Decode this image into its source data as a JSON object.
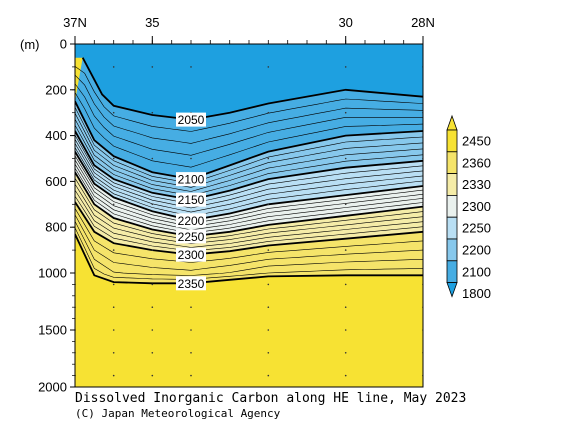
{
  "chart_data": {
    "type": "contour section",
    "title": "Dissolved Inorganic Carbon along HE line, May 2023",
    "credit": "(C) Japan Meteorological Agency",
    "y_unit_label": "(m)",
    "x_ticks": [
      {
        "lat": 37,
        "label": "37N"
      },
      {
        "lat": 35,
        "label": "35"
      },
      {
        "lat": 30,
        "label": "30"
      },
      {
        "lat": 28,
        "label": "28N"
      }
    ],
    "x_range": [
      37,
      28
    ],
    "y_ticks": [
      {
        "depth": 0,
        "label": "0"
      },
      {
        "depth": 200,
        "label": "200"
      },
      {
        "depth": 400,
        "label": "400"
      },
      {
        "depth": 600,
        "label": "600"
      },
      {
        "depth": 800,
        "label": "800"
      },
      {
        "depth": 1000,
        "label": "1000"
      },
      {
        "depth": 1500,
        "label": "1500"
      },
      {
        "depth": 2000,
        "label": "2000"
      }
    ],
    "y_range": [
      0,
      2000
    ],
    "y_scale": "piecewise linear: 0-1000 m upper half, 1000-2000 m lower half",
    "stations_lat": [
      37,
      36,
      35,
      34,
      32,
      30,
      28
    ],
    "contour_levels": [
      {
        "value": 2050,
        "label": "2050",
        "bold": true,
        "points": [
          [
            36.8,
            60
          ],
          [
            36.3,
            220
          ],
          [
            36.0,
            270
          ],
          [
            35.0,
            310
          ],
          [
            34.0,
            330
          ],
          [
            33.0,
            300
          ],
          [
            32.0,
            260
          ],
          [
            30.0,
            200
          ],
          [
            28.0,
            230
          ]
        ]
      },
      {
        "value": 2100,
        "label": "2100",
        "bold": true,
        "points": [
          [
            37.0,
            250
          ],
          [
            36.5,
            420
          ],
          [
            36.0,
            490
          ],
          [
            35.0,
            560
          ],
          [
            34.0,
            590
          ],
          [
            33.0,
            530
          ],
          [
            32.0,
            470
          ],
          [
            30.0,
            400
          ],
          [
            28.0,
            380
          ]
        ]
      },
      {
        "value": 2150,
        "label": "2150",
        "bold": true,
        "points": [
          [
            37.0,
            380
          ],
          [
            36.5,
            530
          ],
          [
            36.0,
            590
          ],
          [
            35.0,
            650
          ],
          [
            34.0,
            680
          ],
          [
            33.0,
            640
          ],
          [
            32.0,
            590
          ],
          [
            30.0,
            540
          ],
          [
            28.0,
            510
          ]
        ]
      },
      {
        "value": 2200,
        "label": "2200",
        "bold": true,
        "points": [
          [
            37.0,
            470
          ],
          [
            36.5,
            610
          ],
          [
            36.0,
            670
          ],
          [
            35.0,
            730
          ],
          [
            34.0,
            770
          ],
          [
            33.0,
            740
          ],
          [
            32.0,
            700
          ],
          [
            30.0,
            660
          ],
          [
            28.0,
            620
          ]
        ]
      },
      {
        "value": 2250,
        "label": "2250",
        "bold": true,
        "points": [
          [
            37.0,
            560
          ],
          [
            36.5,
            700
          ],
          [
            36.0,
            760
          ],
          [
            35.0,
            810
          ],
          [
            34.0,
            840
          ],
          [
            33.0,
            820
          ],
          [
            32.0,
            790
          ],
          [
            30.0,
            750
          ],
          [
            28.0,
            710
          ]
        ]
      },
      {
        "value": 2300,
        "label": "2300",
        "bold": true,
        "points": [
          [
            37.0,
            690
          ],
          [
            36.5,
            820
          ],
          [
            36.0,
            870
          ],
          [
            35.0,
            900
          ],
          [
            34.0,
            920
          ],
          [
            33.0,
            905
          ],
          [
            32.0,
            880
          ],
          [
            30.0,
            850
          ],
          [
            28.0,
            820
          ]
        ]
      },
      {
        "value": 2350,
        "label": "2350",
        "bold": true,
        "points": [
          [
            37.0,
            830
          ],
          [
            36.5,
            1020
          ],
          [
            36.0,
            1080
          ],
          [
            35.0,
            1090
          ],
          [
            34.0,
            1090
          ],
          [
            33.0,
            1060
          ],
          [
            32.0,
            1030
          ],
          [
            30.0,
            1020
          ],
          [
            28.0,
            1020
          ]
        ]
      }
    ],
    "label_latitude": 34,
    "colorbar": {
      "labels": [
        "2450",
        "2360",
        "2330",
        "2300",
        "2250",
        "2200",
        "2100",
        "1800"
      ],
      "colors": [
        "#f7e233",
        "#f5e46a",
        "#f5eca8",
        "#eaf1ee",
        "#b9dff4",
        "#87c8ec",
        "#46ade3",
        "#1ea0e0"
      ]
    }
  }
}
